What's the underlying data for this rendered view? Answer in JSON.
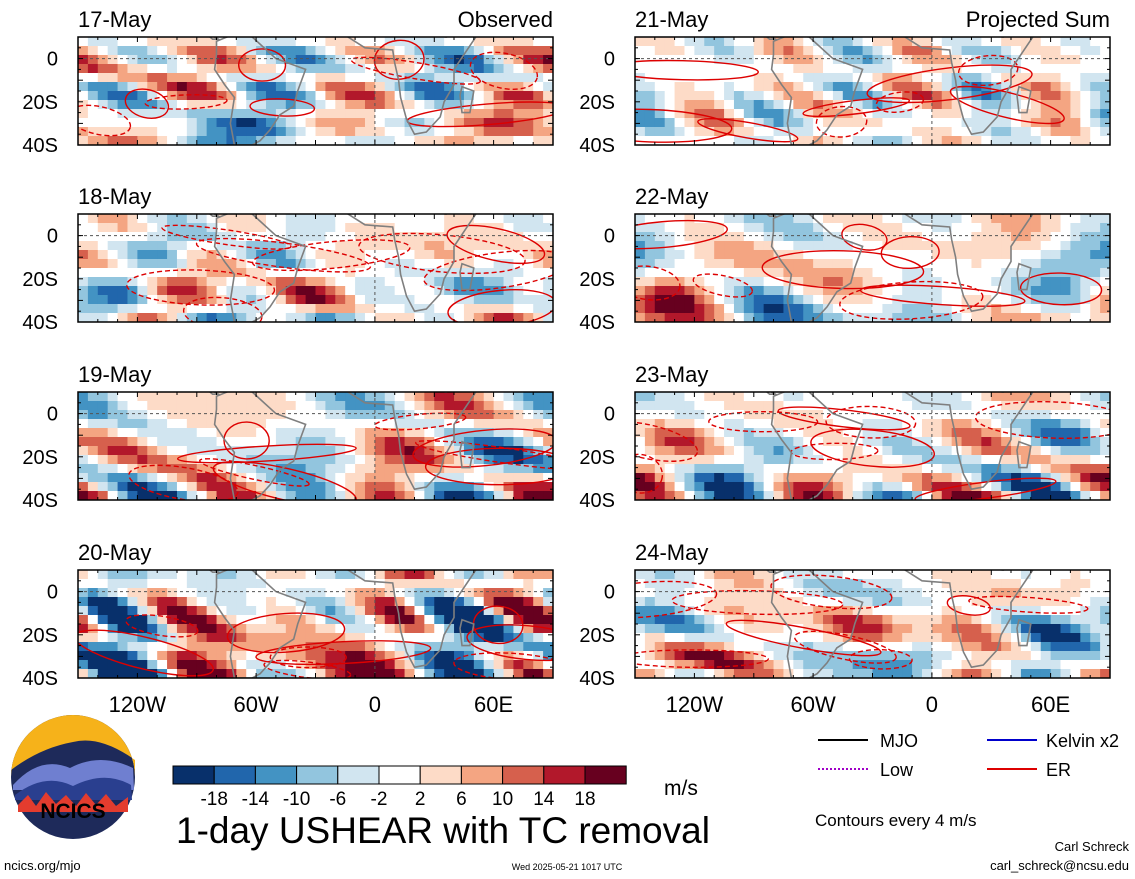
{
  "chart_data": [
    {
      "type": "heatmap",
      "panel_title": "Observed",
      "ylabels": [
        "0",
        "20S",
        "40S"
      ],
      "xlabels": [
        "120W",
        "60W",
        "0",
        "60E"
      ],
      "dates": [
        "17-May",
        "18-May",
        "19-May",
        "20-May"
      ]
    },
    {
      "type": "heatmap",
      "panel_title": "Projected Sum",
      "ylabels": [
        "0",
        "20S",
        "40S"
      ],
      "xlabels": [
        "120W",
        "60W",
        "0",
        "60E"
      ],
      "dates": [
        "21-May",
        "22-May",
        "23-May",
        "24-May"
      ]
    }
  ],
  "colorbar": {
    "ticks": [
      "-18",
      "-14",
      "-10",
      "-6",
      "-2",
      "2",
      "6",
      "10",
      "14",
      "18"
    ],
    "colors": [
      "#08306b",
      "#2166ac",
      "#4393c3",
      "#92c5de",
      "#d1e5f0",
      "#ffffff",
      "#fddbc7",
      "#f4a582",
      "#d6604d",
      "#b2182b",
      "#67001f"
    ],
    "units": "m/s"
  },
  "legend": {
    "items": [
      {
        "label": "MJO",
        "color": "#000000",
        "style": "solid"
      },
      {
        "label": "Kelvin x2",
        "color": "#0000cc",
        "style": "solid"
      },
      {
        "label": "Low",
        "color": "#a000c8",
        "style": "dotted"
      },
      {
        "label": "ER",
        "color": "#dd0000",
        "style": "solid"
      }
    ],
    "contour_note": "Contours every 4 m/s"
  },
  "title": "1-day USHEAR with TC removal",
  "logo_text": "NCICS",
  "footer": {
    "url": "ncics.org/mjo",
    "timestamp": "Wed 2025-05-21 1017 UTC",
    "author": "Carl Schreck",
    "email": "carl_schreck@ncsu.edu"
  },
  "map_colors": {
    "coast": "#7f7f7f",
    "ref_line": "#555555"
  }
}
